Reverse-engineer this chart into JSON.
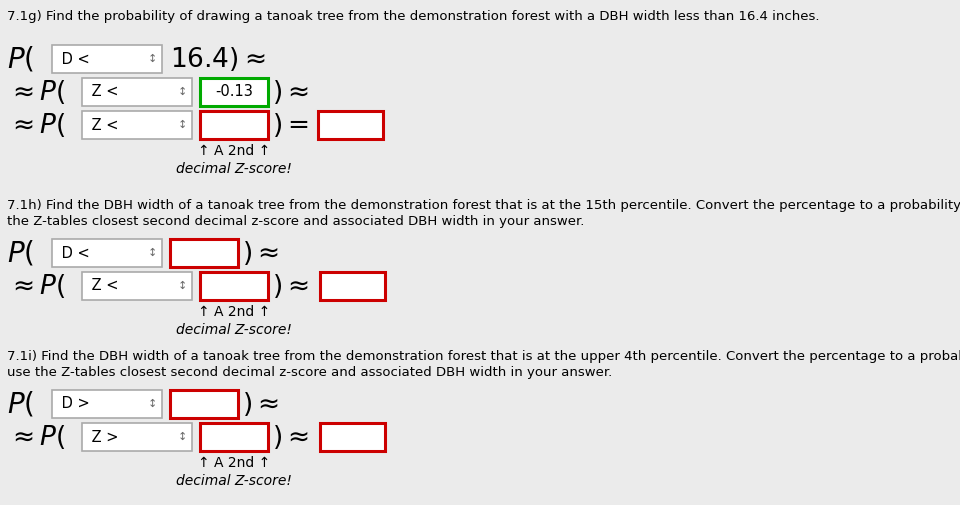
{
  "bg_color": "#ebebeb",
  "title_7g": "7.1g) Find the probability of drawing a tanoak tree from the demonstration forest with a DBH width less than 16.4 inches.",
  "title_7h_line1": "7.1h) Find the DBH width of a tanoak tree from the demonstration forest that is at the 15th percentile. Convert the percentage to a probability and use",
  "title_7h_line2": "the Z-tables closest second decimal z-score and associated DBH width in your answer.",
  "title_7i_line1": "7.1i) Find the DBH width of a tanoak tree from the demonstration forest that is at the upper 4th percentile. Convert the percentage to a probability and",
  "title_7i_line2": "use the Z-tables closest second decimal z-score and associated DBH width in your answer.",
  "text_164": "16.4) ≈",
  "text_minus013": "-0.13",
  "color_red": "#cc0000",
  "color_green": "#00aa00",
  "color_dropdown_border": "#999999",
  "color_bg": "#ebebeb"
}
